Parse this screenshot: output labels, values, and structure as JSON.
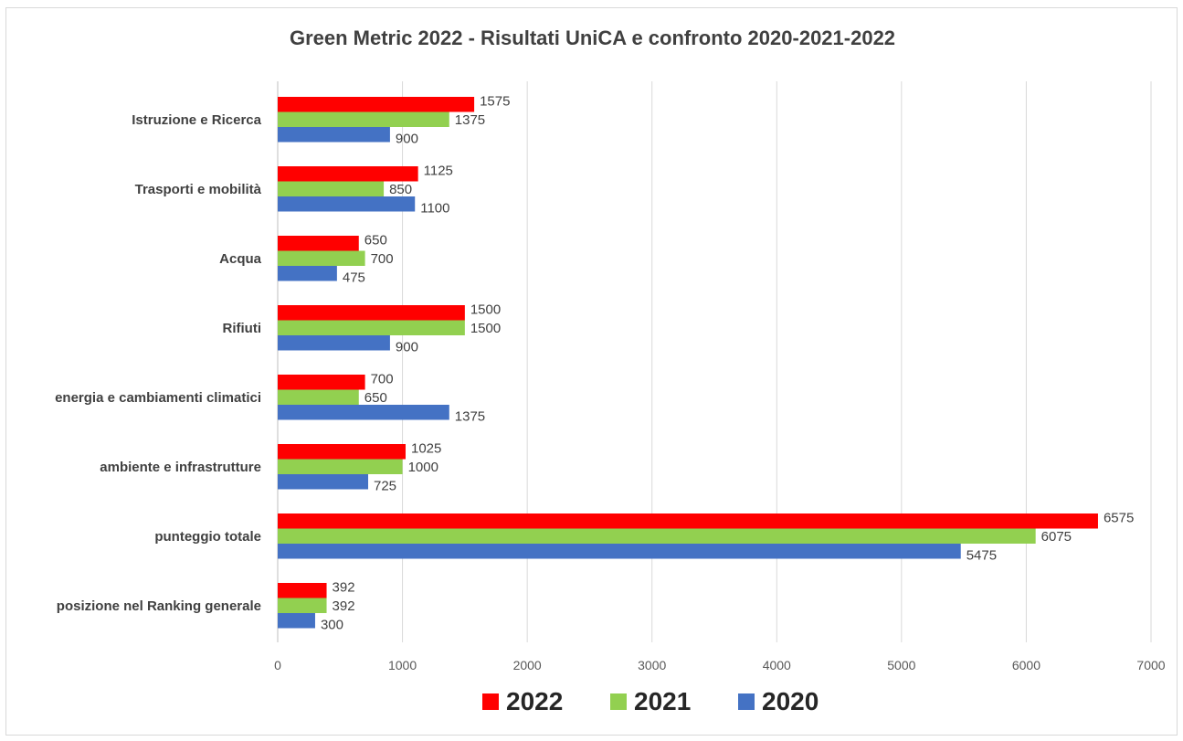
{
  "chart_data": {
    "type": "bar",
    "orientation": "horizontal",
    "title": "Green Metric 2022 - Risultati UniCA e confronto 2020-2021-2022",
    "categories": [
      "Istruzione e Ricerca",
      "Trasporti e mobilità",
      "Acqua",
      "Rifiuti",
      "energia e cambiamenti climatici",
      "ambiente e infrastrutture",
      "punteggio totale",
      "posizione nel Ranking generale"
    ],
    "series": [
      {
        "name": "2022",
        "color": "#ff0000",
        "values": [
          1575,
          1125,
          650,
          1500,
          700,
          1025,
          6575,
          392
        ]
      },
      {
        "name": "2021",
        "color": "#92d050",
        "values": [
          1375,
          850,
          700,
          1500,
          650,
          1000,
          6075,
          392
        ]
      },
      {
        "name": "2020",
        "color": "#4472c4",
        "values": [
          900,
          1100,
          475,
          900,
          1375,
          725,
          5475,
          300
        ]
      }
    ],
    "xlim": [
      0,
      7000
    ],
    "xticks": [
      "0",
      "1000",
      "2000",
      "3000",
      "4000",
      "5000",
      "6000",
      "7000"
    ],
    "grid": true,
    "legend_position": "bottom"
  }
}
